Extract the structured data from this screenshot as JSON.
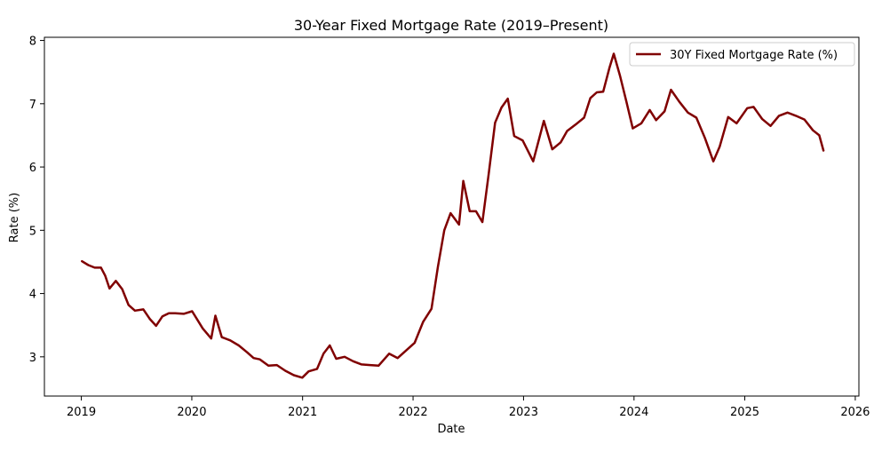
{
  "chart_data": {
    "type": "line",
    "title": "30-Year Fixed Mortgage Rate (2019–Present)",
    "xlabel": "Date",
    "ylabel": "Rate (%)",
    "xlim": [
      "2018-09-01",
      "2026-01-13"
    ],
    "ylim": [
      2.38,
      8.05
    ],
    "xticks": [
      {
        "date": "2019-01-01",
        "label": "2019"
      },
      {
        "date": "2020-01-01",
        "label": "2020"
      },
      {
        "date": "2021-01-01",
        "label": "2021"
      },
      {
        "date": "2022-01-01",
        "label": "2022"
      },
      {
        "date": "2023-01-01",
        "label": "2023"
      },
      {
        "date": "2024-01-01",
        "label": "2024"
      },
      {
        "date": "2025-01-01",
        "label": "2025"
      },
      {
        "date": "2026-01-01",
        "label": "2026"
      }
    ],
    "yticks": [
      3,
      4,
      5,
      6,
      7,
      8
    ],
    "grid": false,
    "legend_position": "top-right",
    "series": [
      {
        "name": "30Y Fixed Mortgage Rate (%)",
        "color": "#800000",
        "x": [
          "2019-01-03",
          "2019-01-24",
          "2019-02-14",
          "2019-03-07",
          "2019-03-21",
          "2019-04-04",
          "2019-04-25",
          "2019-05-16",
          "2019-06-06",
          "2019-06-27",
          "2019-07-25",
          "2019-08-15",
          "2019-09-05",
          "2019-09-26",
          "2019-10-17",
          "2019-11-07",
          "2019-12-05",
          "2020-01-02",
          "2020-02-06",
          "2020-03-05",
          "2020-03-19",
          "2020-04-09",
          "2020-05-07",
          "2020-06-04",
          "2020-07-02",
          "2020-07-23",
          "2020-08-13",
          "2020-09-10",
          "2020-10-08",
          "2020-11-05",
          "2020-12-03",
          "2020-12-31",
          "2021-01-21",
          "2021-02-18",
          "2021-03-11",
          "2021-04-01",
          "2021-04-22",
          "2021-05-20",
          "2021-06-17",
          "2021-07-15",
          "2021-08-12",
          "2021-09-09",
          "2021-10-14",
          "2021-11-11",
          "2021-12-09",
          "2022-01-06",
          "2022-02-03",
          "2022-03-03",
          "2022-03-24",
          "2022-04-14",
          "2022-05-05",
          "2022-06-02",
          "2022-06-16",
          "2022-07-07",
          "2022-07-28",
          "2022-08-18",
          "2022-09-08",
          "2022-09-29",
          "2022-10-20",
          "2022-11-10",
          "2022-12-01",
          "2022-12-29",
          "2023-02-02",
          "2023-03-09",
          "2023-04-06",
          "2023-05-04",
          "2023-05-25",
          "2023-06-22",
          "2023-07-20",
          "2023-08-10",
          "2023-08-31",
          "2023-09-21",
          "2023-10-12",
          "2023-10-26",
          "2023-11-16",
          "2023-12-07",
          "2023-12-28",
          "2024-01-25",
          "2024-02-22",
          "2024-03-14",
          "2024-04-11",
          "2024-05-02",
          "2024-05-30",
          "2024-06-27",
          "2024-07-25",
          "2024-08-22",
          "2024-09-19",
          "2024-10-10",
          "2024-11-07",
          "2024-12-05",
          "2025-01-09",
          "2025-01-30",
          "2025-02-27",
          "2025-03-27",
          "2025-04-24",
          "2025-05-22",
          "2025-06-19",
          "2025-07-17",
          "2025-08-14",
          "2025-09-04",
          "2025-09-18"
        ],
        "y": [
          4.51,
          4.45,
          4.41,
          4.41,
          4.28,
          4.08,
          4.2,
          4.07,
          3.82,
          3.73,
          3.75,
          3.6,
          3.49,
          3.64,
          3.69,
          3.69,
          3.68,
          3.72,
          3.45,
          3.29,
          3.65,
          3.31,
          3.26,
          3.18,
          3.07,
          2.98,
          2.96,
          2.86,
          2.87,
          2.78,
          2.71,
          2.67,
          2.77,
          2.81,
          3.05,
          3.18,
          2.97,
          3.0,
          2.93,
          2.88,
          2.87,
          2.86,
          3.05,
          2.98,
          3.1,
          3.22,
          3.55,
          3.76,
          4.42,
          5.0,
          5.27,
          5.09,
          5.78,
          5.3,
          5.3,
          5.13,
          5.89,
          6.7,
          6.94,
          7.08,
          6.49,
          6.42,
          6.09,
          6.73,
          6.28,
          6.39,
          6.57,
          6.67,
          6.78,
          7.09,
          7.18,
          7.19,
          7.57,
          7.79,
          7.44,
          7.03,
          6.61,
          6.69,
          6.9,
          6.74,
          6.88,
          7.22,
          7.03,
          6.86,
          6.78,
          6.46,
          6.09,
          6.32,
          6.79,
          6.69,
          6.93,
          6.95,
          6.76,
          6.65,
          6.81,
          6.86,
          6.81,
          6.75,
          6.58,
          6.5,
          6.26
        ]
      }
    ]
  }
}
